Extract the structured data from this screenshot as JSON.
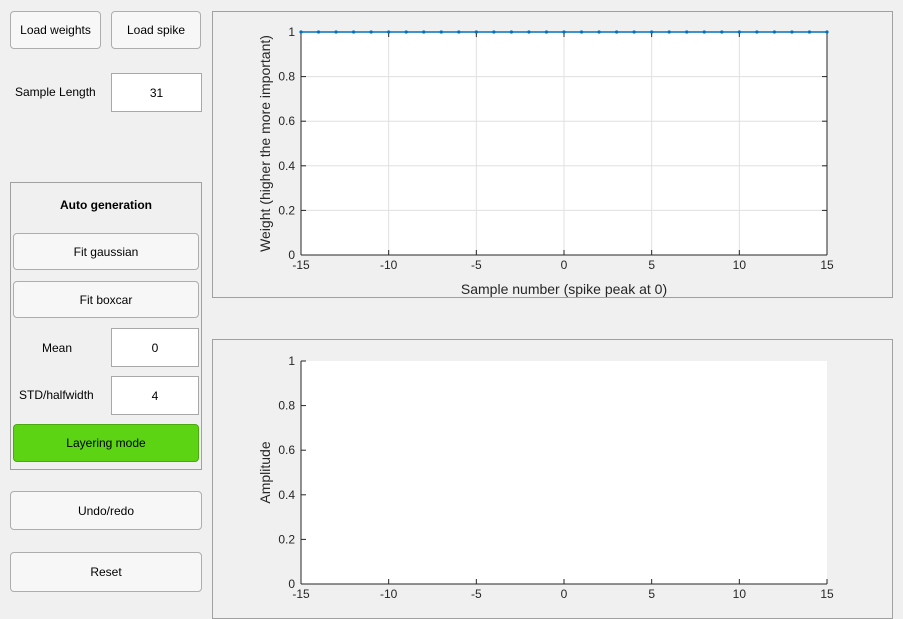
{
  "controls": {
    "load_weights": "Load weights",
    "load_spike": "Load spike",
    "sample_length_label": "Sample Length",
    "sample_length_value": "31",
    "undo_redo": "Undo/redo",
    "reset": "Reset"
  },
  "auto_generation": {
    "title": "Auto generation",
    "fit_gaussian": "Fit gaussian",
    "fit_boxcar": "Fit boxcar",
    "mean_label": "Mean",
    "mean_value": "0",
    "std_label": "STD/halfwidth",
    "std_value": "4",
    "layering_mode": "Layering mode",
    "layering_color": "#5cd313"
  },
  "chart_data": [
    {
      "type": "line",
      "xlabel": "Sample number (spike peak at 0)",
      "ylabel": "Weight (higher the more important)",
      "xlim": [
        -15,
        15
      ],
      "ylim": [
        0,
        1
      ],
      "x_ticks": [
        -15,
        -10,
        -5,
        0,
        5,
        10,
        15
      ],
      "y_ticks": [
        0,
        0.2,
        0.4,
        0.6,
        0.8,
        1
      ],
      "y_tick_labels": [
        "0",
        "0.2",
        "0.4",
        "0.6",
        "0.8",
        "1"
      ],
      "grid": true,
      "color": "#0072bd",
      "x": [
        -15,
        -14,
        -13,
        -12,
        -11,
        -10,
        -9,
        -8,
        -7,
        -6,
        -5,
        -4,
        -3,
        -2,
        -1,
        0,
        1,
        2,
        3,
        4,
        5,
        6,
        7,
        8,
        9,
        10,
        11,
        12,
        13,
        14,
        15
      ],
      "y": [
        1,
        1,
        1,
        1,
        1,
        1,
        1,
        1,
        1,
        1,
        1,
        1,
        1,
        1,
        1,
        1,
        1,
        1,
        1,
        1,
        1,
        1,
        1,
        1,
        1,
        1,
        1,
        1,
        1,
        1,
        1
      ]
    },
    {
      "type": "line",
      "xlabel": "",
      "ylabel": "Amplitude",
      "xlim": [
        -15,
        15
      ],
      "ylim": [
        0,
        1
      ],
      "x_ticks": [
        -15,
        -10,
        -5,
        0,
        5,
        10,
        15
      ],
      "y_ticks": [
        0,
        0.2,
        0.4,
        0.6,
        0.8,
        1
      ],
      "y_tick_labels": [
        "0",
        "0.2",
        "0.4",
        "0.6",
        "0.8",
        "1"
      ],
      "grid": false,
      "x": [],
      "y": []
    }
  ]
}
